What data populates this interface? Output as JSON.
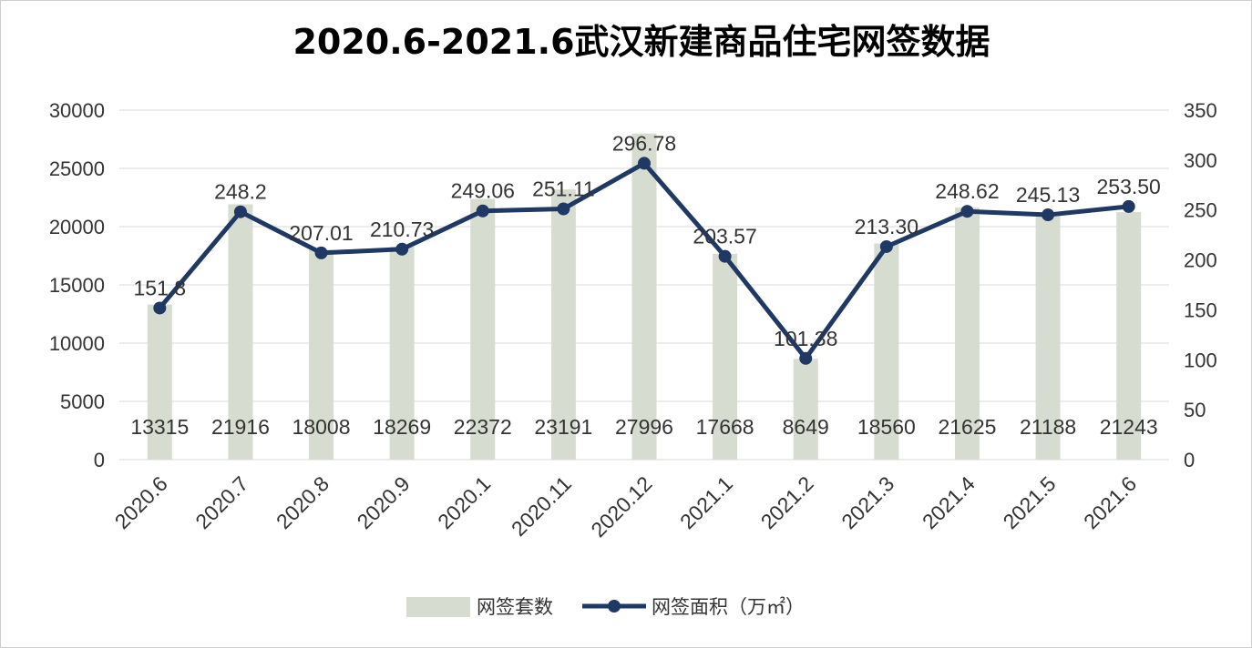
{
  "chart_data": {
    "type": "bar",
    "title": "2020.6-2021.6武汉新建商品住宅网签数据",
    "categories": [
      "2020.6",
      "2020.7",
      "2020.8",
      "2020.9",
      "2020.1",
      "2020.11",
      "2020.12",
      "2021.1",
      "2021.2",
      "2021.3",
      "2021.4",
      "2021.5",
      "2021.6"
    ],
    "series": [
      {
        "name": "网签套数",
        "type": "bar",
        "axis": "left",
        "color": "#d6dccf",
        "values": [
          13315,
          21916,
          18008,
          18269,
          22372,
          23191,
          27996,
          17668,
          8649,
          18560,
          21625,
          21188,
          21243
        ],
        "labels": [
          "13315",
          "21916",
          "18008",
          "18269",
          "22372",
          "23191",
          "27996",
          "17668",
          "8649",
          "18560",
          "21625",
          "21188",
          "21243"
        ]
      },
      {
        "name": "网签面积（万㎡）",
        "type": "line",
        "axis": "right",
        "color": "#1f3864",
        "values": [
          151.8,
          248.2,
          207.01,
          210.73,
          249.06,
          251.11,
          296.78,
          203.57,
          101.38,
          213.3,
          248.62,
          245.13,
          253.5
        ],
        "labels": [
          "151.8",
          "248.2",
          "207.01",
          "210.73",
          "249.06",
          "251.11",
          "296.78",
          "203.57",
          "101.38",
          "213.30",
          "248.62",
          "245.13",
          "253.50"
        ]
      }
    ],
    "y_left": {
      "min": 0,
      "max": 30000,
      "ticks": [
        "0",
        "5000",
        "10000",
        "15000",
        "20000",
        "25000",
        "30000"
      ]
    },
    "y_right": {
      "min": 0,
      "max": 350,
      "ticks": [
        "0",
        "50",
        "100",
        "150",
        "200",
        "250",
        "300",
        "350"
      ]
    },
    "grid": true,
    "legend_position": "bottom"
  }
}
